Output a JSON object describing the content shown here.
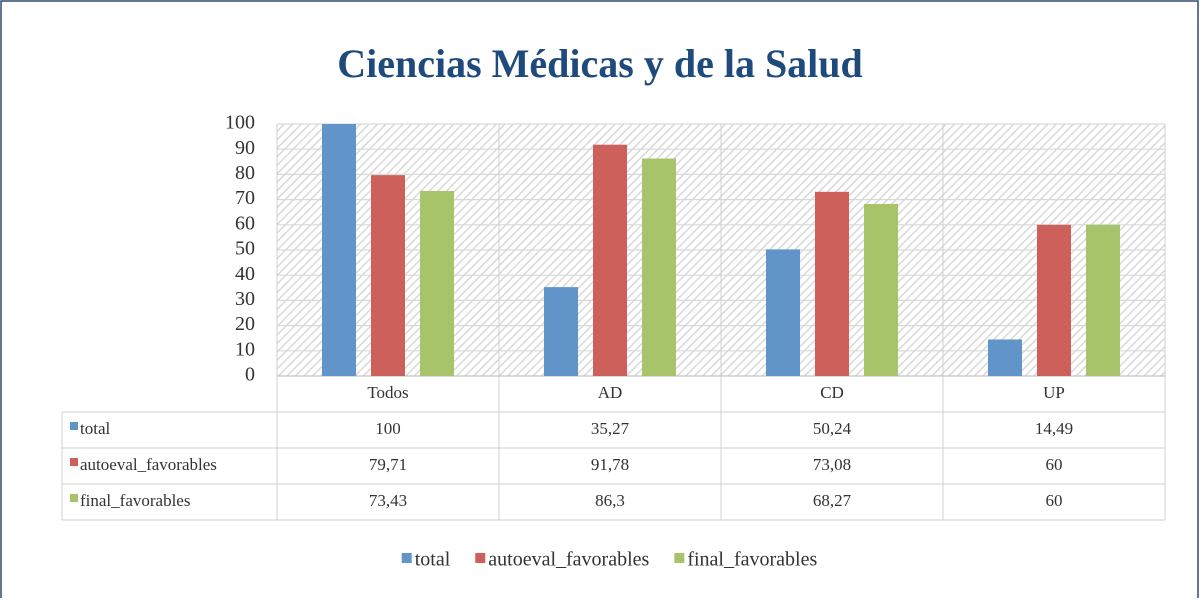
{
  "chart_data": {
    "type": "bar",
    "title": "Ciencias Médicas y de la Salud",
    "categories": [
      "Todos",
      "AD",
      "CD",
      "UP"
    ],
    "series": [
      {
        "name": "total",
        "color": "#6195c9",
        "values": [
          100,
          35.27,
          50.24,
          14.49
        ],
        "value_labels": [
          "100",
          "35,27",
          "50,24",
          "14,49"
        ]
      },
      {
        "name": "autoeval_favorables",
        "color": "#cd605b",
        "values": [
          79.71,
          91.78,
          73.08,
          60
        ],
        "value_labels": [
          "79,71",
          "91,78",
          "73,08",
          "60"
        ]
      },
      {
        "name": "final_favorables",
        "color": "#a8c46a",
        "values": [
          73.43,
          86.3,
          68.27,
          60
        ],
        "value_labels": [
          "73,43",
          "86,3",
          "68,27",
          "60"
        ]
      }
    ],
    "ylim": [
      0,
      100
    ],
    "yticks": [
      0,
      10,
      20,
      30,
      40,
      50,
      60,
      70,
      80,
      90,
      100
    ],
    "grid": true,
    "legend": "bottom"
  }
}
